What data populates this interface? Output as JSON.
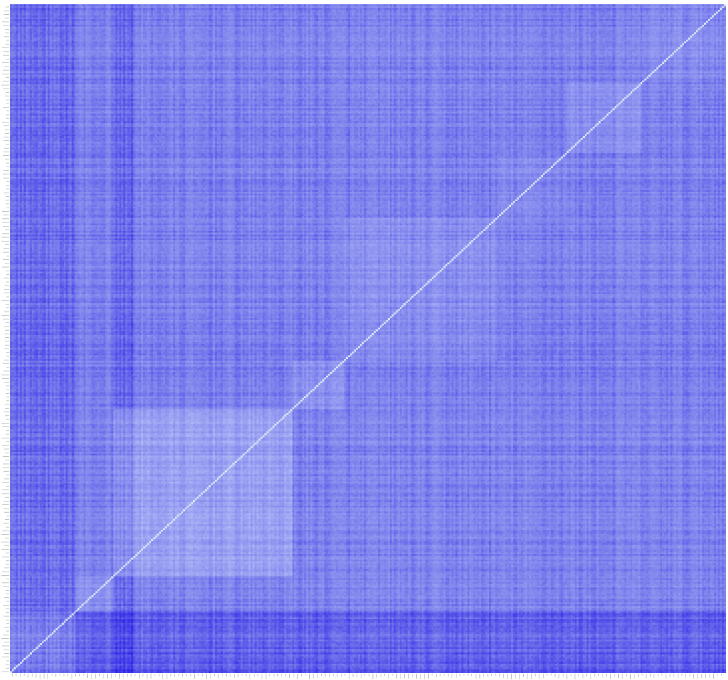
{
  "chart_data": {
    "type": "heatmap",
    "title": "",
    "xlabel": "",
    "ylabel": "",
    "n_rows": 360,
    "n_cols": 360,
    "value_range": [
      0,
      1
    ],
    "diagonal_value": 1,
    "colors": {
      "low": "#2b22e6",
      "mid": "#7d82ec",
      "high": "#b9c2f8",
      "diagonal": "#dfe9f6",
      "tick_text": "#9a9a9a"
    },
    "color_scale": "blue-to-pale",
    "legend": "none",
    "grid": false,
    "clusters": [
      {
        "start": 0,
        "end": 33,
        "mean_similarity": 0.78
      },
      {
        "start": 33,
        "end": 52,
        "mean_similarity": 0.6
      },
      {
        "start": 52,
        "end": 142,
        "mean_similarity": 0.72
      },
      {
        "start": 142,
        "end": 168,
        "mean_similarity": 0.62
      },
      {
        "start": 168,
        "end": 245,
        "mean_similarity": 0.58
      },
      {
        "start": 245,
        "end": 280,
        "mean_similarity": 0.55
      },
      {
        "start": 280,
        "end": 318,
        "mean_similarity": 0.6
      },
      {
        "start": 318,
        "end": 360,
        "mean_similarity": 0.56
      }
    ],
    "dark_row_bands": [
      {
        "start": 0,
        "end": 33,
        "value": 0.2
      },
      {
        "start": 0,
        "end": 8,
        "value": 0.15
      }
    ],
    "dark_col_bands": [
      {
        "start": 0,
        "end": 33,
        "value": 0.25
      },
      {
        "start": 52,
        "end": 62,
        "value": 0.2
      }
    ]
  }
}
